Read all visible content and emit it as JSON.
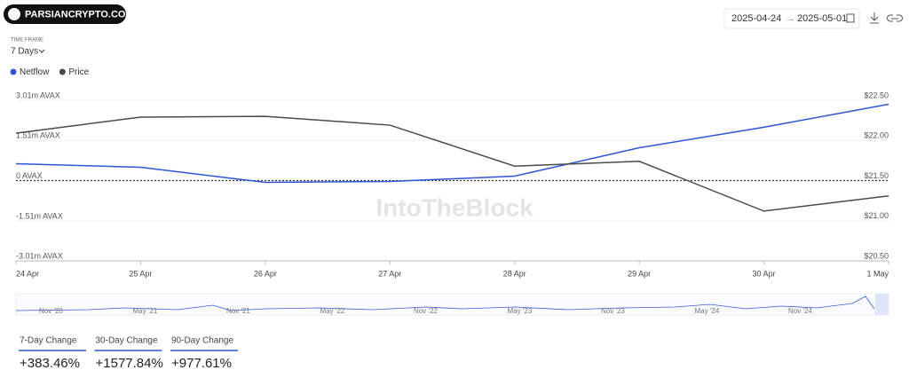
{
  "header": {
    "logo": "PARSIANCRYPTO.COM",
    "date_start": "2025-04-24",
    "date_separator": "→",
    "date_end": "2025-05-01",
    "time_frame_label": "TIME FRAME",
    "time_frame": "7 Days"
  },
  "chart_data": {
    "type": "line",
    "watermark": "IntoTheBlock",
    "categories": [
      "24 Apr",
      "25 Apr",
      "26 Apr",
      "27 Apr",
      "28 Apr",
      "29 Apr",
      "30 Apr",
      "1 May"
    ],
    "series": [
      {
        "name": "Netflow",
        "color": "#2f55d4",
        "values": [
          632000,
          499000,
          -67000,
          -33000,
          166000,
          1230000,
          2000000,
          2860000
        ]
      },
      {
        "name": "Price",
        "color": "#4a4a4a",
        "axis": "y2",
        "values": [
          22.09,
          22.29,
          22.3,
          22.19,
          21.68,
          21.74,
          21.12,
          21.31
        ]
      }
    ],
    "ylim": [
      -3010000,
      3010000
    ],
    "yticks": [
      {
        "value": 3010000,
        "label": "3.01m AVAX"
      },
      {
        "value": 1510000,
        "label": "1.51m AVAX"
      },
      {
        "value": 0,
        "label": "0 AVAX"
      },
      {
        "value": -1510000,
        "label": "-1.51m AVAX"
      },
      {
        "value": -3010000,
        "label": "-3.01m AVAX"
      }
    ],
    "y2lim": [
      20.5,
      22.5
    ],
    "y2ticks": [
      {
        "value": 22.5,
        "label": "$22.50"
      },
      {
        "value": 22,
        "label": "$22.00"
      },
      {
        "value": 21.5,
        "label": "$21.50"
      },
      {
        "value": 21,
        "label": "$21.00"
      },
      {
        "value": 20.5,
        "label": "$20.50"
      }
    ],
    "grid": true
  },
  "navigator": {
    "labels": [
      "Nov '20",
      "May '21",
      "Nov '21",
      "May '22",
      "Nov '22",
      "May '23",
      "Nov '23",
      "May '24",
      "Nov '24"
    ]
  },
  "stats": [
    {
      "label": "7-Day Change",
      "value": "+383.46%"
    },
    {
      "label": "30-Day Change",
      "value": "+1577.84%"
    },
    {
      "label": "90-Day Change",
      "value": "+977.61%"
    }
  ]
}
